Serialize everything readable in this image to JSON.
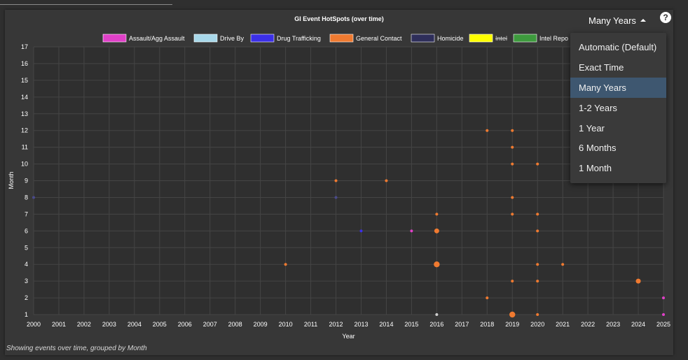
{
  "chart_title": "GI Event HotSpots (over time)",
  "caption": "Showing events over time, grouped by Month",
  "dropdown": {
    "selected_label": "Many Years",
    "options": [
      "Automatic (Default)",
      "Exact Time",
      "Many Years",
      "1-2 Years",
      "1 Year",
      "6 Months",
      "1 Month"
    ],
    "selected_index": 2
  },
  "help_label": "?",
  "chart_data": {
    "type": "scatter",
    "title": "GI Event HotSpots (over time)",
    "xlabel": "Year",
    "ylabel": "Month",
    "xlim": [
      2000,
      2025
    ],
    "ylim": [
      1,
      17
    ],
    "x_ticks": [
      "2000",
      "2001",
      "2002",
      "2003",
      "2004",
      "2005",
      "2006",
      "2007",
      "2008",
      "2009",
      "2010",
      "2011",
      "2012",
      "2013",
      "2014",
      "2015",
      "2016",
      "2017",
      "2018",
      "2019",
      "2020",
      "2021",
      "2022",
      "2023",
      "2024",
      "2025"
    ],
    "y_ticks": [
      "1",
      "2",
      "3",
      "4",
      "5",
      "6",
      "7",
      "8",
      "9",
      "10",
      "11",
      "12",
      "13",
      "14",
      "15",
      "16",
      "17"
    ],
    "grid": true,
    "legend_position": "top",
    "legend": [
      {
        "name": "Assault/Agg Assault",
        "color": "#e040c8",
        "hidden": false
      },
      {
        "name": "Drive By",
        "color": "#a8d8ea",
        "hidden": false
      },
      {
        "name": "Drug Trafficking",
        "color": "#3b2fe8",
        "hidden": false
      },
      {
        "name": "General Contact",
        "color": "#f07a30",
        "hidden": false
      },
      {
        "name": "Homicide",
        "color": "#2e2e5a",
        "hidden": false
      },
      {
        "name": "Intel",
        "color": "#ffff00",
        "hidden": true
      },
      {
        "name": "Intel Repo",
        "color": "#3d9a3d",
        "hidden": false
      }
    ],
    "series": [
      {
        "name": "Assault/Agg Assault",
        "color": "#e040c8",
        "points": [
          {
            "x": 2015,
            "y": 6,
            "size": 1
          },
          {
            "x": 2025,
            "y": 2,
            "size": 1
          },
          {
            "x": 2025,
            "y": 1,
            "size": 1
          }
        ]
      },
      {
        "name": "Drug Trafficking",
        "color": "#3b2fe8",
        "points": [
          {
            "x": 2013,
            "y": 6,
            "size": 1
          }
        ]
      },
      {
        "name": "Homicide",
        "color": "#4a4a8a",
        "points": [
          {
            "x": 2000,
            "y": 8,
            "size": 1
          },
          {
            "x": 2012,
            "y": 8,
            "size": 1
          }
        ]
      },
      {
        "name": "Drive By",
        "color": "#cfcfcf",
        "points": [
          {
            "x": 2016,
            "y": 1,
            "size": 1
          }
        ]
      },
      {
        "name": "General Contact",
        "color": "#f07a30",
        "points": [
          {
            "x": 2010,
            "y": 4,
            "size": 1
          },
          {
            "x": 2012,
            "y": 9,
            "size": 1
          },
          {
            "x": 2014,
            "y": 9,
            "size": 1
          },
          {
            "x": 2016,
            "y": 7,
            "size": 1
          },
          {
            "x": 2016,
            "y": 6,
            "size": 2
          },
          {
            "x": 2016,
            "y": 4,
            "size": 3
          },
          {
            "x": 2018,
            "y": 12,
            "size": 1
          },
          {
            "x": 2018,
            "y": 2,
            "size": 1
          },
          {
            "x": 2019,
            "y": 12,
            "size": 1
          },
          {
            "x": 2019,
            "y": 11,
            "size": 1
          },
          {
            "x": 2019,
            "y": 10,
            "size": 1
          },
          {
            "x": 2019,
            "y": 8,
            "size": 1
          },
          {
            "x": 2019,
            "y": 7,
            "size": 1
          },
          {
            "x": 2019,
            "y": 3,
            "size": 1
          },
          {
            "x": 2019,
            "y": 1,
            "size": 3
          },
          {
            "x": 2020,
            "y": 10,
            "size": 1
          },
          {
            "x": 2020,
            "y": 7,
            "size": 1
          },
          {
            "x": 2020,
            "y": 6,
            "size": 1
          },
          {
            "x": 2020,
            "y": 4,
            "size": 1
          },
          {
            "x": 2020,
            "y": 3,
            "size": 1
          },
          {
            "x": 2020,
            "y": 1,
            "size": 1
          },
          {
            "x": 2021,
            "y": 4,
            "size": 1
          },
          {
            "x": 2024,
            "y": 3,
            "size": 2
          }
        ]
      }
    ]
  }
}
